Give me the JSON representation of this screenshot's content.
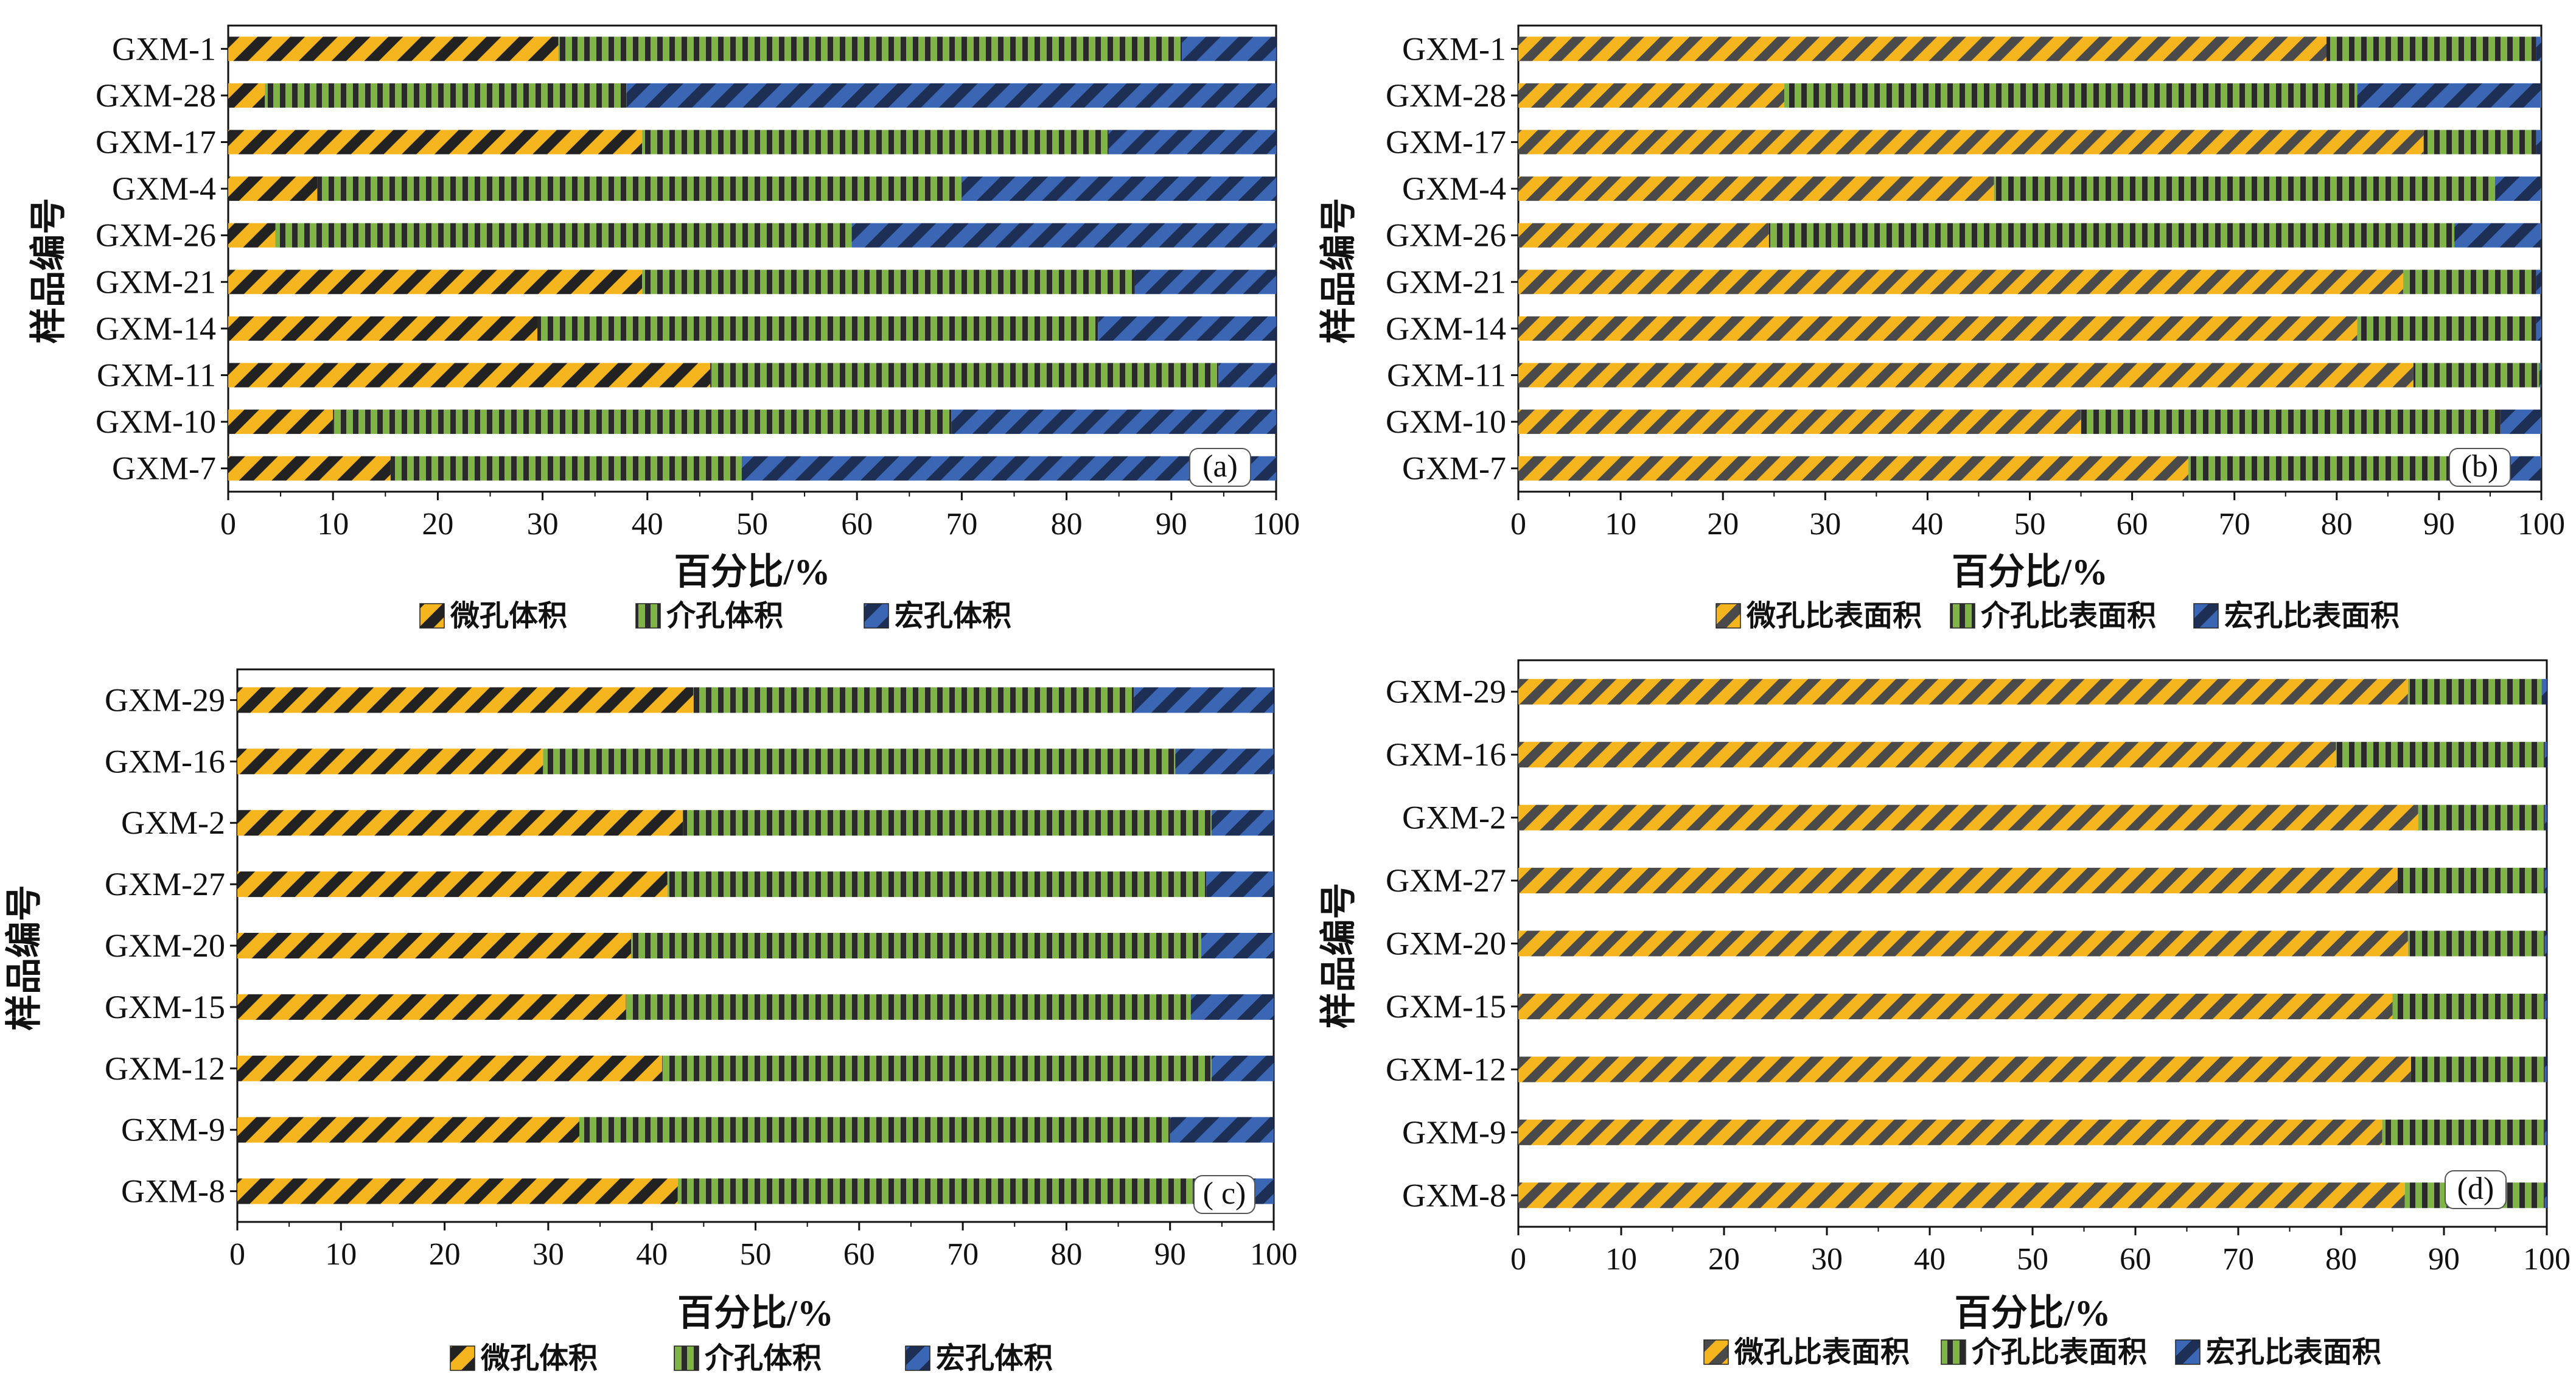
{
  "chart_data": [
    {
      "type": "bar",
      "orientation": "horizontal",
      "stacked": true,
      "panel_label": "(a)",
      "xlabel": "百分比/%",
      "ylabel": "样品编号",
      "xlim": [
        0,
        100
      ],
      "xticks": [
        "0",
        "10",
        "20",
        "30",
        "40",
        "50",
        "60",
        "70",
        "80",
        "90",
        "100"
      ],
      "categories": [
        "GXM-1",
        "GXM-28",
        "GXM-17",
        "GXM-4",
        "GXM-26",
        "GXM-21",
        "GXM-14",
        "GXM-11",
        "GXM-10",
        "GXM-7"
      ],
      "series": [
        {
          "name": "微孔体积",
          "values": [
            31.5,
            3.5,
            39.5,
            8.5,
            4.5,
            39.5,
            29.5,
            46,
            10,
            15.5
          ]
        },
        {
          "name": "介孔体积",
          "values": [
            59.5,
            34.5,
            44.5,
            61.5,
            55,
            47,
            53.5,
            48.5,
            59,
            33.5
          ]
        },
        {
          "name": "宏孔体积",
          "values": [
            9,
            62,
            16,
            30,
            40.5,
            13.5,
            17,
            5.5,
            31,
            51
          ]
        }
      ],
      "legend": {
        "position": "bottom"
      },
      "grid": false
    },
    {
      "type": "bar",
      "orientation": "horizontal",
      "stacked": true,
      "panel_label": "(b)",
      "xlabel": "百分比/%",
      "ylabel": "样品编号",
      "xlim": [
        0,
        100
      ],
      "xticks": [
        "0",
        "10",
        "20",
        "30",
        "40",
        "50",
        "60",
        "70",
        "80",
        "90",
        "100"
      ],
      "categories": [
        "GXM-1",
        "GXM-28",
        "GXM-17",
        "GXM-4",
        "GXM-26",
        "GXM-21",
        "GXM-14",
        "GXM-11",
        "GXM-10",
        "GXM-7"
      ],
      "series": [
        {
          "name": "微孔比表面积",
          "values": [
            79,
            26,
            88.5,
            46.5,
            24.5,
            86.5,
            82,
            87.5,
            55,
            65.5
          ]
        },
        {
          "name": "介孔比表面积",
          "values": [
            20.5,
            56,
            11,
            49,
            67,
            13,
            17.5,
            12.3,
            41,
            31.5
          ]
        },
        {
          "name": "宏孔比表面积",
          "values": [
            0.5,
            18,
            0.5,
            4.5,
            8.5,
            0.5,
            0.5,
            0.2,
            4,
            3
          ]
        }
      ],
      "legend": {
        "position": "bottom"
      },
      "grid": false
    },
    {
      "type": "bar",
      "orientation": "horizontal",
      "stacked": true,
      "panel_label": "( c)",
      "xlabel": "百分比/%",
      "ylabel": "样品编号",
      "xlim": [
        0,
        100
      ],
      "xticks": [
        "0",
        "10",
        "20",
        "30",
        "40",
        "50",
        "60",
        "70",
        "80",
        "90",
        "100"
      ],
      "categories": [
        "GXM-29",
        "GXM-16",
        "GXM-2",
        "GXM-27",
        "GXM-20",
        "GXM-15",
        "GXM-12",
        "GXM-9",
        "GXM-8"
      ],
      "series": [
        {
          "name": "微孔体积",
          "values": [
            44,
            29.5,
            43,
            41.5,
            38,
            37.5,
            41,
            33,
            42.5
          ]
        },
        {
          "name": "介孔体积",
          "values": [
            42.5,
            61,
            51,
            52,
            55,
            54.5,
            53,
            57,
            50.5
          ]
        },
        {
          "name": "宏孔体积",
          "values": [
            13.5,
            9.5,
            6,
            6.5,
            7,
            8,
            6,
            10,
            7
          ]
        }
      ],
      "legend": {
        "position": "bottom"
      },
      "grid": false
    },
    {
      "type": "bar",
      "orientation": "horizontal",
      "stacked": true,
      "panel_label": "(d)",
      "xlabel": "百分比/%",
      "ylabel": "样品编号",
      "xlim": [
        0,
        100
      ],
      "xticks": [
        "0",
        "10",
        "20",
        "30",
        "40",
        "50",
        "60",
        "70",
        "80",
        "90",
        "100"
      ],
      "categories": [
        "GXM-29",
        "GXM-16",
        "GXM-2",
        "GXM-27",
        "GXM-20",
        "GXM-15",
        "GXM-12",
        "GXM-9",
        "GXM-8"
      ],
      "series": [
        {
          "name": "微孔比表面积",
          "values": [
            86.5,
            79.5,
            87.5,
            85.5,
            86.5,
            85,
            86.8,
            84,
            86.2
          ]
        },
        {
          "name": "介孔比表面积",
          "values": [
            13,
            20.3,
            12.3,
            14.3,
            13.3,
            14.8,
            13,
            15.8,
            13.6
          ]
        },
        {
          "name": "宏孔比表面积",
          "values": [
            0.5,
            0.2,
            0.2,
            0.2,
            0.2,
            0.2,
            0.2,
            0.2,
            0.2
          ]
        }
      ],
      "legend": {
        "position": "bottom"
      },
      "grid": false
    }
  ],
  "colors": {
    "micro": "#f5b51e",
    "meso": "#7fb545",
    "macro": "#3b66b3",
    "stripe_micro": "#222222",
    "stripe_meso": "#2a2a2a",
    "stripe_macro": "#1e2f55"
  }
}
